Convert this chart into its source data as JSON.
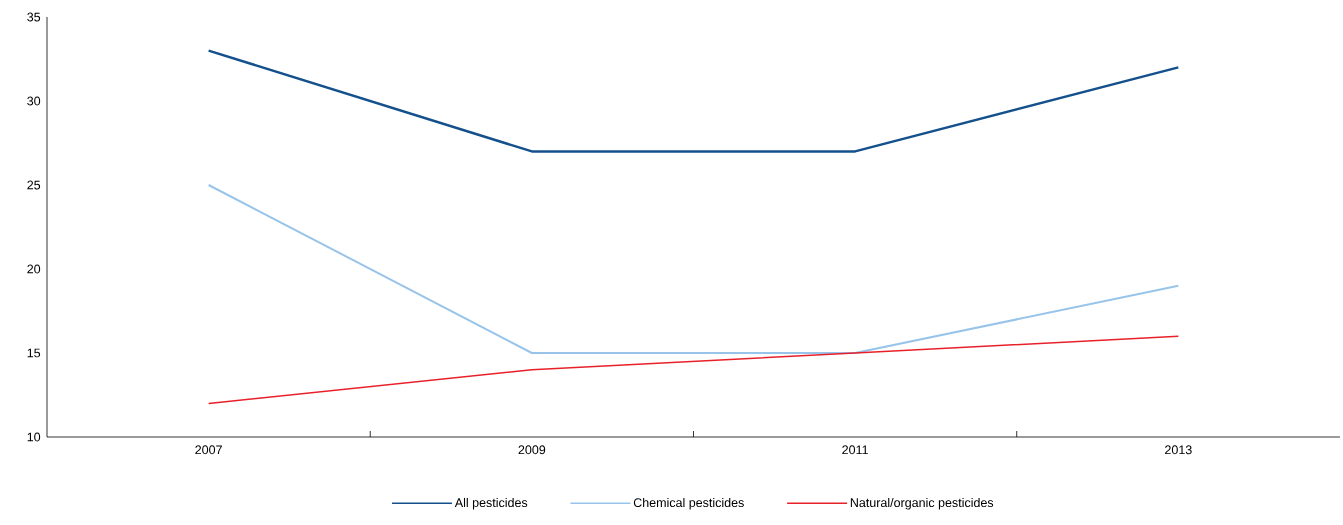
{
  "chart_data": {
    "type": "line",
    "categories": [
      "2007",
      "2009",
      "2011",
      "2013"
    ],
    "series": [
      {
        "name": "All pesticides",
        "color": "#14508c",
        "values": [
          33,
          27,
          27,
          32
        ]
      },
      {
        "name": "Chemical pesticides",
        "color": "#98c4ea",
        "values": [
          25,
          15,
          15,
          19
        ]
      },
      {
        "name": "Natural/organic pesticides",
        "color": "#e8202a",
        "values": [
          12,
          14,
          15,
          16
        ]
      }
    ],
    "ylim": [
      10,
      35
    ],
    "yticks": [
      10,
      15,
      20,
      25,
      30,
      35
    ],
    "grid": false,
    "legend": "bottom",
    "marker": "none",
    "line_style": "solid"
  }
}
